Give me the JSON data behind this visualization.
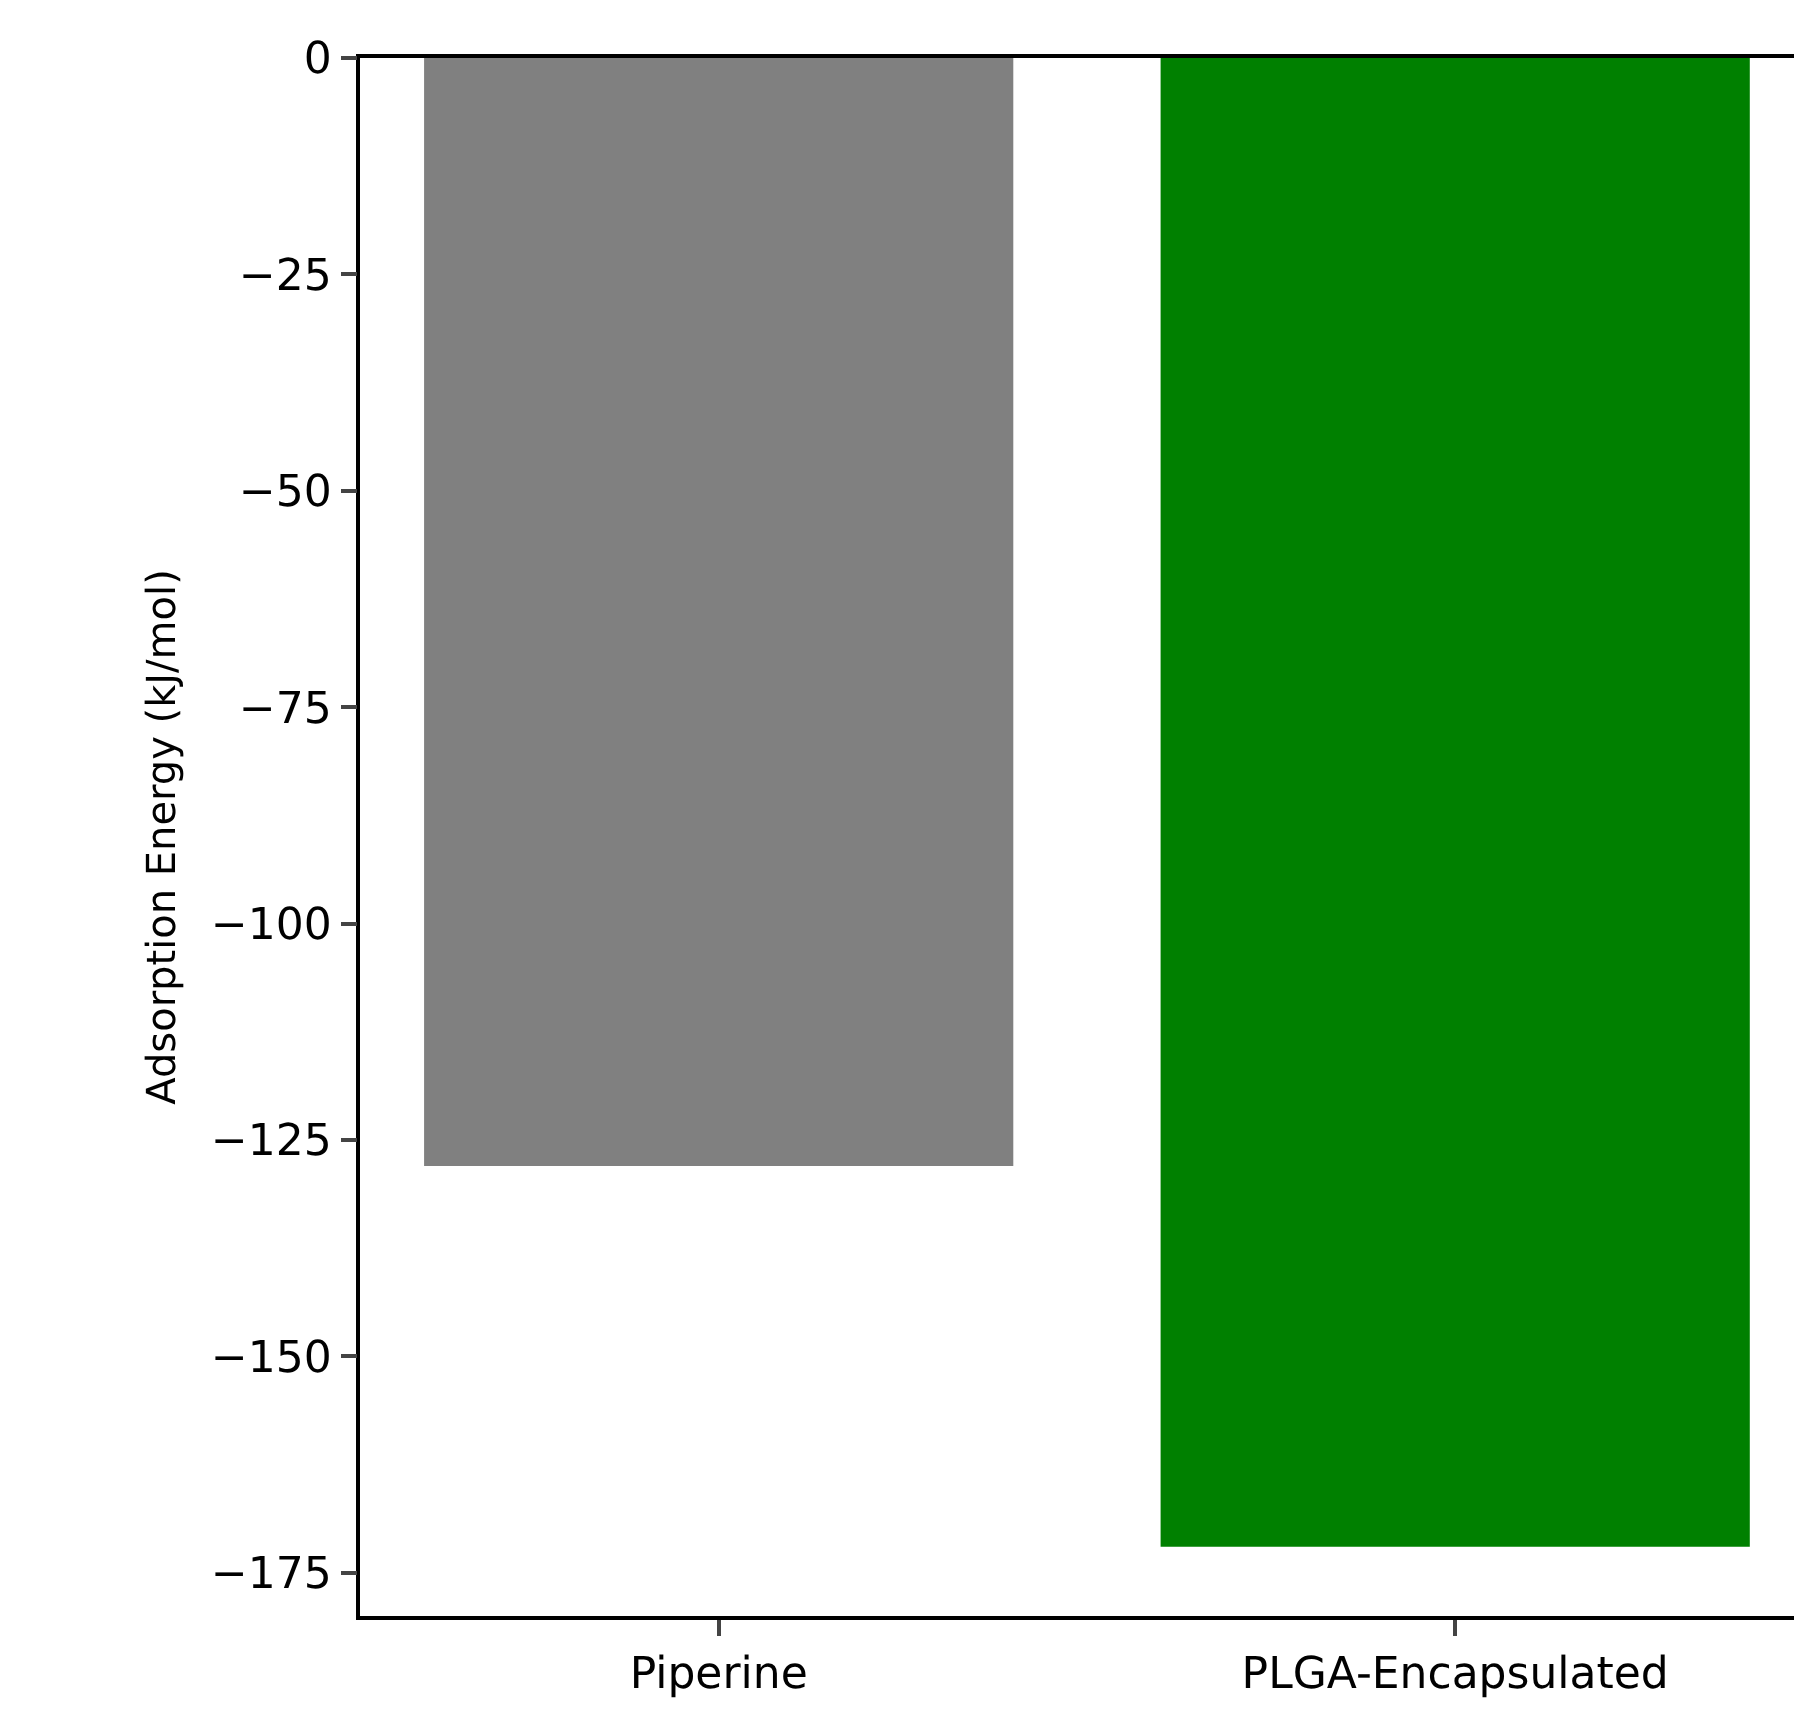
{
  "chart_data": {
    "type": "bar",
    "ylabel": "Adsorption Energy (kJ/mol)",
    "categories": [
      "Piperine",
      "PLGA-Encapsulated"
    ],
    "values": [
      -128,
      -172
    ],
    "colors": [
      "#808080",
      "#008000"
    ],
    "ylim": [
      -180,
      0
    ],
    "yticks": [
      0,
      {
        "value": -25,
        "label": "−25"
      },
      {
        "value": -50,
        "label": "−50"
      },
      {
        "value": -75,
        "label": "−75"
      },
      {
        "value": -100,
        "label": "−100"
      },
      {
        "value": -125,
        "label": "−125"
      },
      {
        "value": -150,
        "label": "−150"
      },
      {
        "value": -175,
        "label": "−175"
      }
    ],
    "grid": false
  }
}
